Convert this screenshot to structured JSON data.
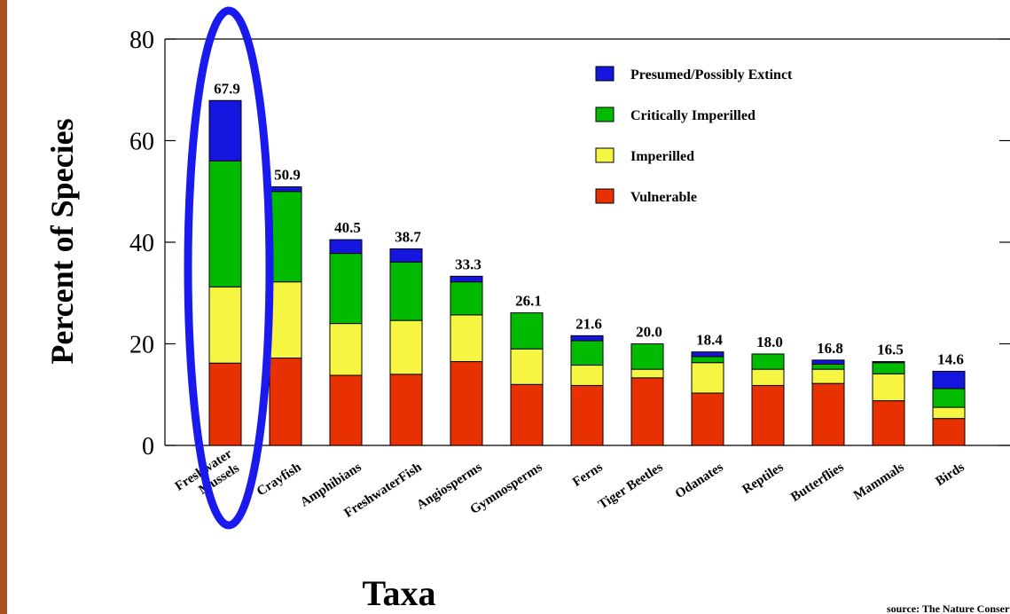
{
  "colors": {
    "left_strip": "#a8501e",
    "highlight": "#1a1aee"
  },
  "chart_data": {
    "type": "bar",
    "stacked": true,
    "ylabel": "Percent of Species",
    "xlabel": "Taxa",
    "ylim": [
      0,
      80
    ],
    "yticks": [
      "0",
      "20",
      "40",
      "60",
      "80"
    ],
    "grid": false,
    "legend_position": "top-right",
    "source": "source: The Nature Conservancy",
    "categories": [
      [
        "Freshwater",
        "Mussels"
      ],
      [
        "Crayfish"
      ],
      [
        "Amphibians"
      ],
      [
        "FreshwaterFish"
      ],
      [
        "Angiosperms"
      ],
      [
        "Gymnosperms"
      ],
      [
        "Ferns"
      ],
      [
        "Tiger Beetles"
      ],
      [
        "Odanates"
      ],
      [
        "Reptiles"
      ],
      [
        "Butterflies"
      ],
      [
        "Mammals"
      ],
      [
        "Birds"
      ]
    ],
    "totals": [
      "67.9",
      "50.9",
      "40.5",
      "38.7",
      "33.3",
      "26.1",
      "21.6",
      "20.0",
      "18.4",
      "18.0",
      "16.8",
      "16.5",
      "14.6"
    ],
    "series": [
      {
        "name": "Vulnerable",
        "color": "#e83000",
        "values": [
          16.2,
          17.2,
          13.8,
          14.0,
          16.5,
          12.0,
          11.8,
          13.3,
          10.3,
          11.8,
          12.2,
          8.8,
          5.3
        ]
      },
      {
        "name": " Imperilled",
        "color": "#f5f542",
        "values": [
          15.0,
          15.0,
          10.2,
          10.6,
          9.2,
          7.0,
          4.0,
          1.7,
          6.0,
          3.2,
          2.8,
          5.3,
          2.2
        ]
      },
      {
        "name": "Critically Imperilled",
        "color": "#00bb00",
        "values": [
          24.8,
          17.8,
          13.8,
          11.5,
          6.5,
          7.1,
          4.8,
          5.0,
          1.2,
          3.0,
          1.0,
          2.2,
          3.7
        ]
      },
      {
        "name": "Presumed/Possibly Extinct",
        "color": "#1515e0",
        "values": [
          11.9,
          0.9,
          2.7,
          2.6,
          1.1,
          0.0,
          1.0,
          0.0,
          0.9,
          0.0,
          0.8,
          0.2,
          3.4
        ]
      }
    ],
    "legend_order": [
      "Presumed/Possibly Extinct",
      "Critically Imperilled",
      " Imperilled",
      "Vulnerable"
    ],
    "highlighted_category_index": 0
  }
}
